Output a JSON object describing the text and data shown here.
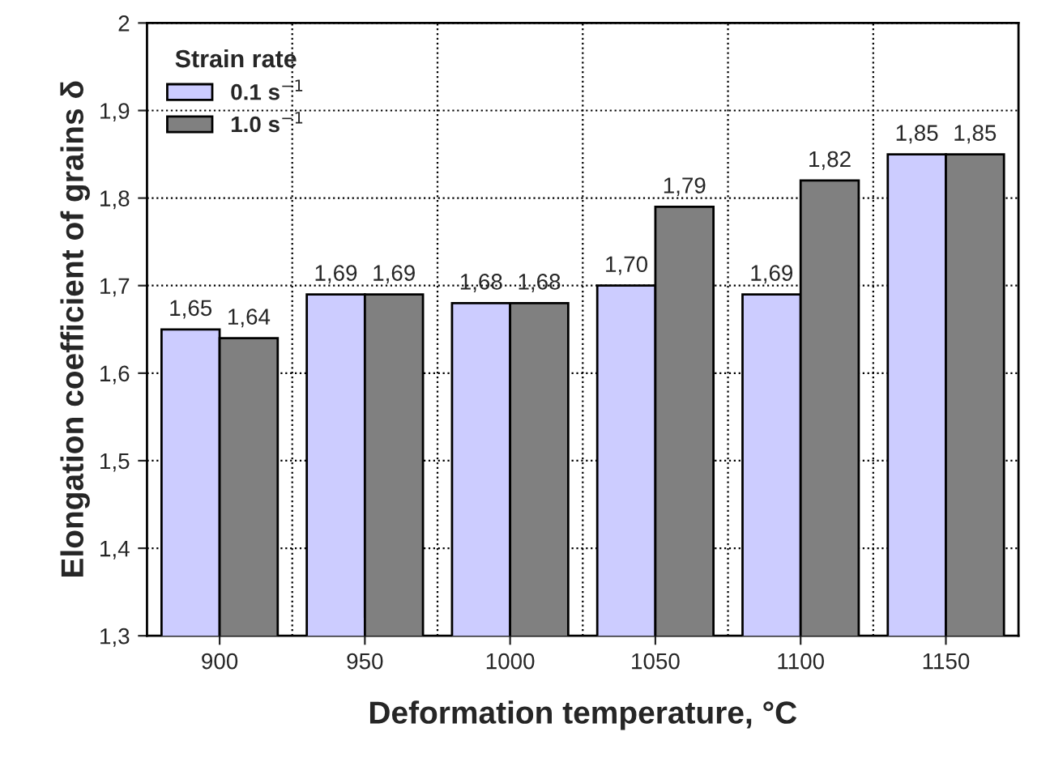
{
  "chart_data": {
    "type": "bar",
    "xlabel": "Deformation temperature, °C",
    "ylabel": "Elongation coefficient of grains δ",
    "legend_title": "Strain rate",
    "categories": [
      "900",
      "950",
      "1000",
      "1050",
      "1100",
      "1150"
    ],
    "series": [
      {
        "name": "0.1 s$^{−1}$",
        "color": "#ccccff",
        "values": [
          1.65,
          1.69,
          1.68,
          1.7,
          1.69,
          1.85
        ],
        "value_labels": [
          "1,65",
          "1,69",
          "1,68",
          "1,70",
          "1,69",
          "1,85"
        ]
      },
      {
        "name": "1.0 s$^{−1}$",
        "color": "#808080",
        "values": [
          1.64,
          1.69,
          1.68,
          1.79,
          1.82,
          1.85
        ],
        "value_labels": [
          "1,64",
          "1,69",
          "1,68",
          "1,79",
          "1,82",
          "1,85"
        ]
      }
    ],
    "ylim": [
      1.3,
      2.0
    ],
    "yticks": [
      {
        "value": 1.3,
        "label": "1,3"
      },
      {
        "value": 1.4,
        "label": "1,4"
      },
      {
        "value": 1.5,
        "label": "1,5"
      },
      {
        "value": 1.6,
        "label": "1,6"
      },
      {
        "value": 1.7,
        "label": "1,7"
      },
      {
        "value": 1.8,
        "label": "1,8"
      },
      {
        "value": 1.9,
        "label": "1,9"
      },
      {
        "value": 2.0,
        "label": "2"
      }
    ],
    "grid": true,
    "legend": "top left"
  }
}
